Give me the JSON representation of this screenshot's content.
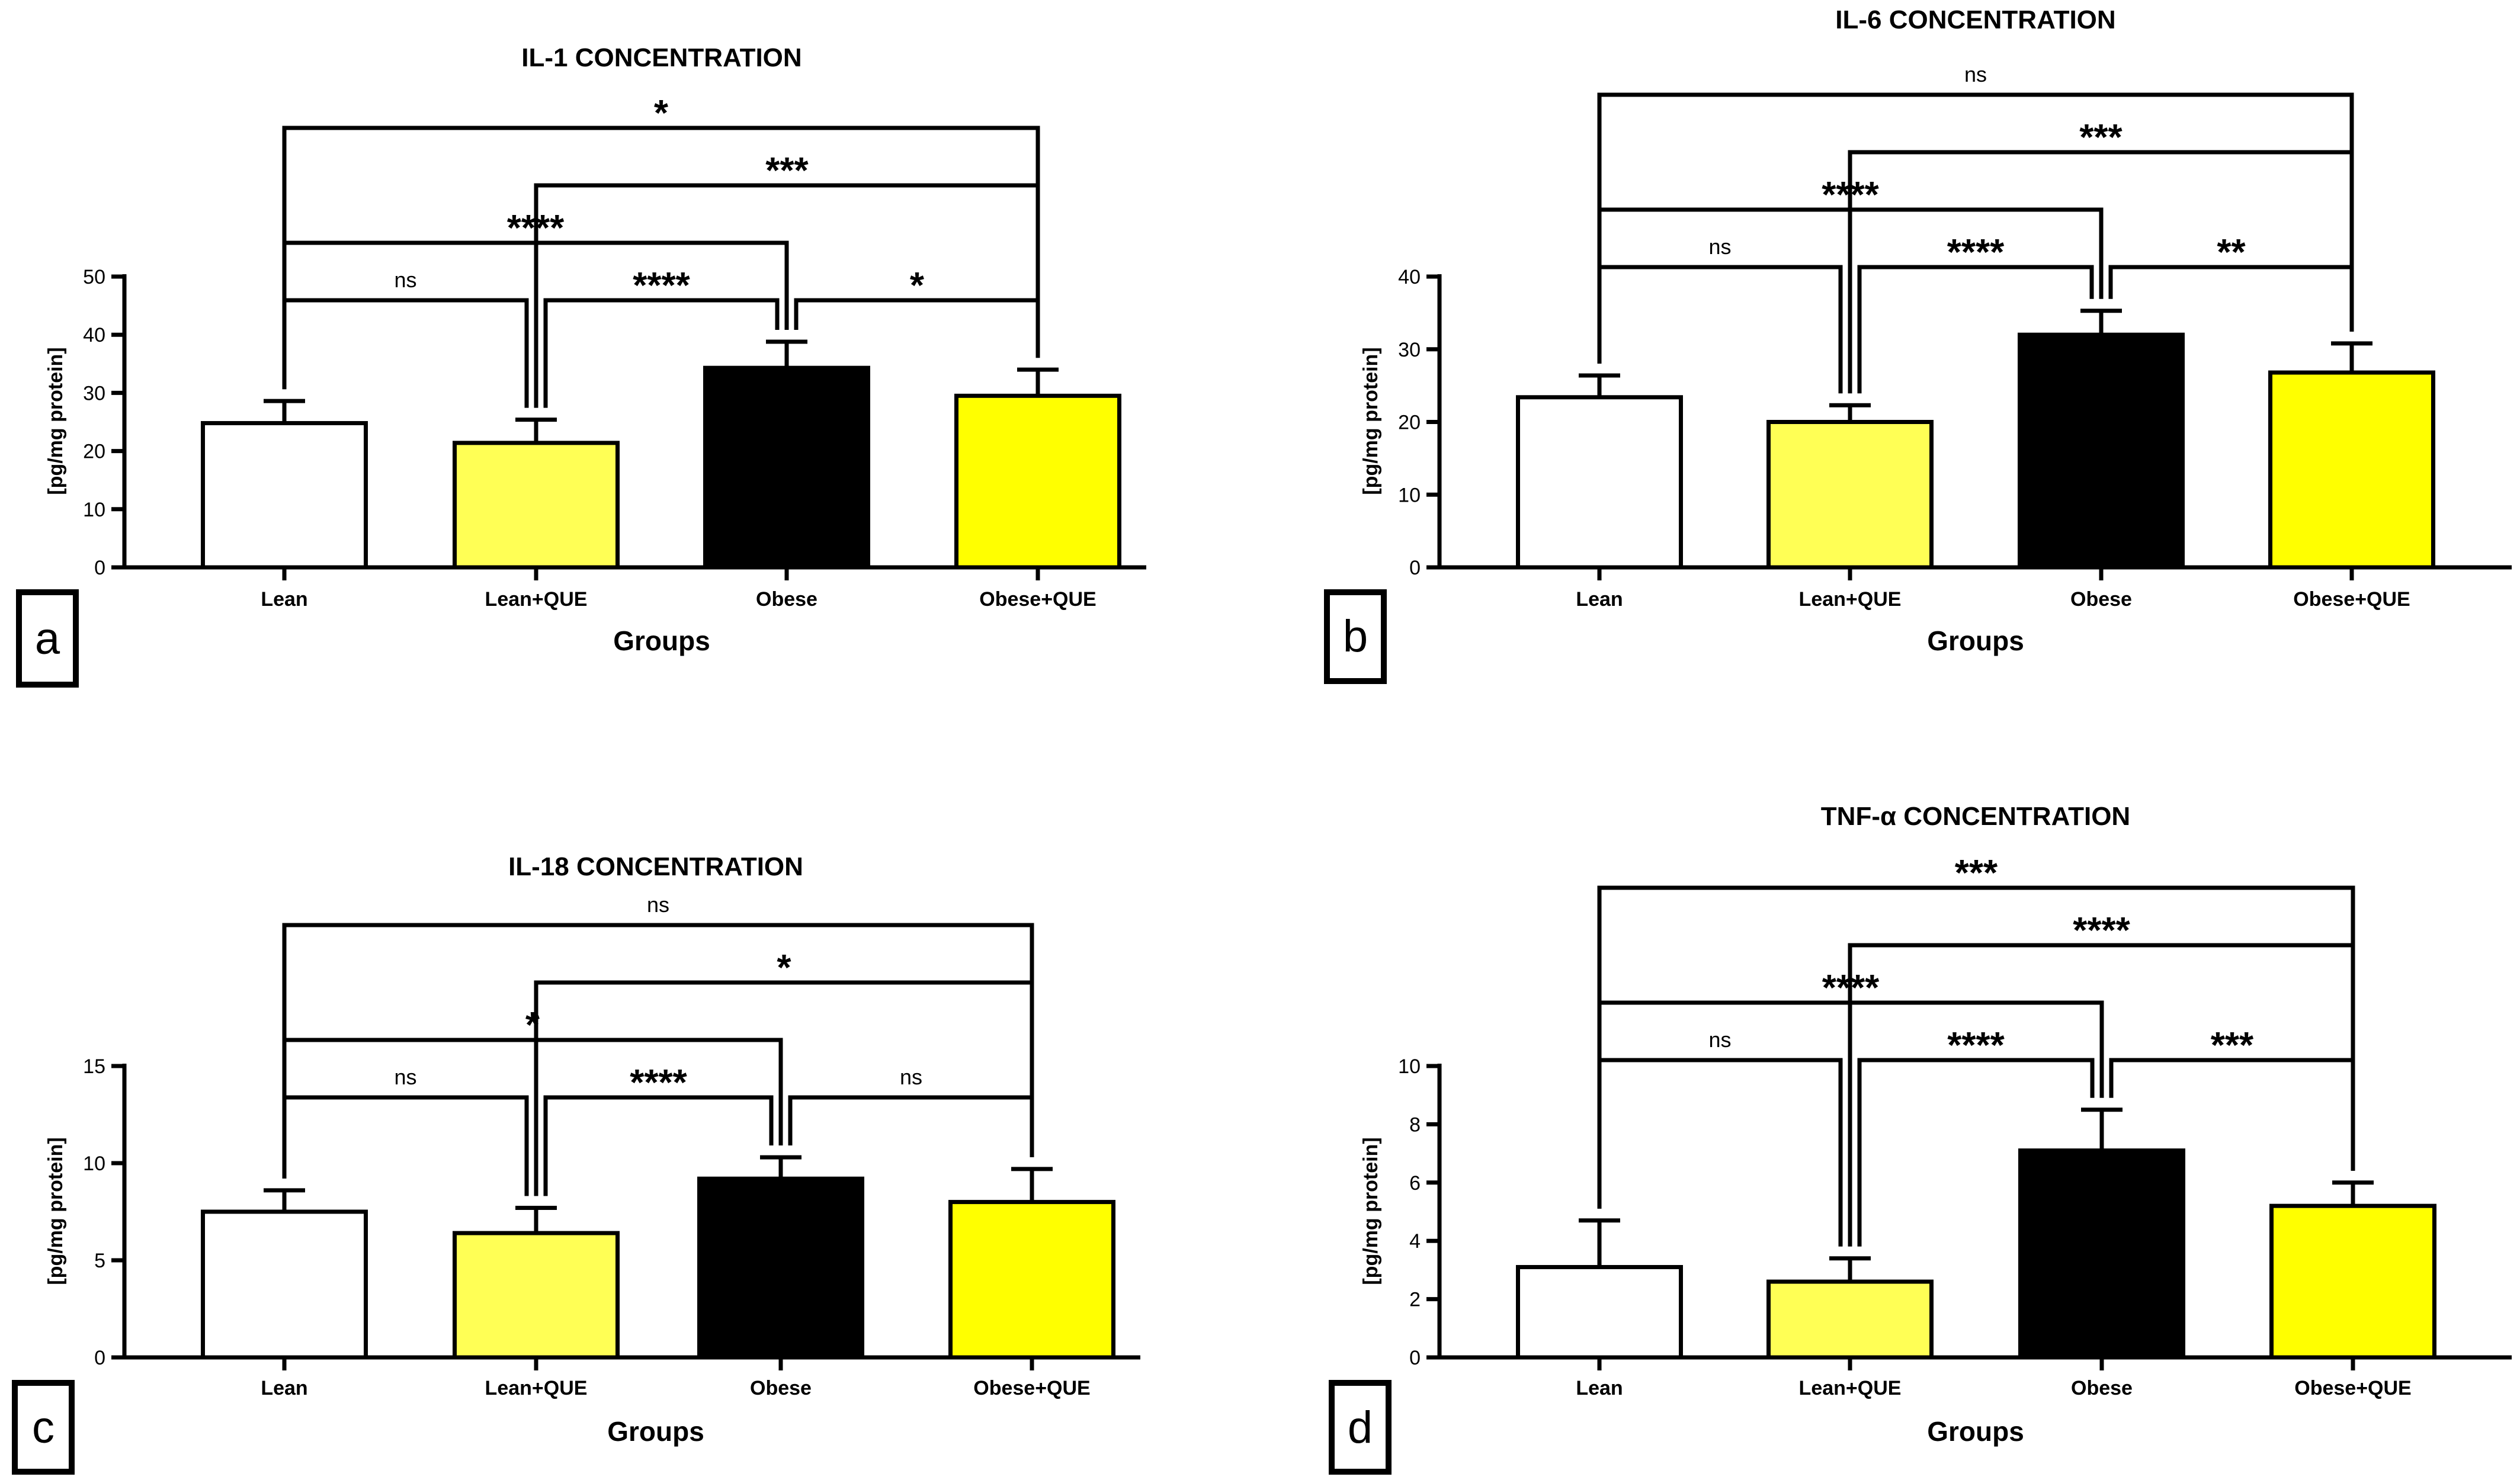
{
  "chart_data": [
    {
      "panel": "a",
      "type": "bar",
      "title": "IL-1 CONCENTRATION",
      "xlabel": "Groups",
      "ylabel": "[pg/mg protein]",
      "categories": [
        "Lean",
        "Lean+QUE",
        "Obese",
        "Obese+QUE"
      ],
      "values": [
        24.8,
        21.4,
        34.3,
        29.5
      ],
      "errors": [
        3.8,
        4.0,
        4.5,
        4.5
      ],
      "colors": [
        "#ffffff",
        "#ffff55",
        "#000000",
        "#ffff00"
      ],
      "ylim": [
        0,
        50
      ],
      "yticks": [
        "0",
        "10",
        "20",
        "30",
        "40",
        "50"
      ],
      "comparisons": [
        {
          "from": 0,
          "to": 1,
          "label": "ns"
        },
        {
          "from": 1,
          "to": 2,
          "label": "****"
        },
        {
          "from": 2,
          "to": 3,
          "label": "*"
        },
        {
          "from": 0,
          "to": 2,
          "label": "****"
        },
        {
          "from": 1,
          "to": 3,
          "label": "***"
        },
        {
          "from": 0,
          "to": 3,
          "label": "*"
        }
      ]
    },
    {
      "panel": "b",
      "type": "bar",
      "title": "IL-6 CONCENTRATION",
      "xlabel": "Groups",
      "ylabel": "[pg/mg protein]",
      "categories": [
        "Lean",
        "Lean+QUE",
        "Obese",
        "Obese+QUE"
      ],
      "values": [
        23.4,
        20.0,
        32.0,
        26.8
      ],
      "errors": [
        3.0,
        2.3,
        3.3,
        4.0
      ],
      "colors": [
        "#ffffff",
        "#ffff55",
        "#000000",
        "#ffff00"
      ],
      "ylim": [
        0,
        40
      ],
      "yticks": [
        "0",
        "10",
        "20",
        "30",
        "40"
      ],
      "comparisons": [
        {
          "from": 0,
          "to": 1,
          "label": "ns"
        },
        {
          "from": 1,
          "to": 2,
          "label": "****"
        },
        {
          "from": 2,
          "to": 3,
          "label": "**"
        },
        {
          "from": 0,
          "to": 2,
          "label": "****"
        },
        {
          "from": 1,
          "to": 3,
          "label": "***"
        },
        {
          "from": 0,
          "to": 3,
          "label": "ns"
        }
      ]
    },
    {
      "panel": "c",
      "type": "bar",
      "title": "IL-18 CONCENTRATION",
      "xlabel": "Groups",
      "ylabel": "[pg/mg protein]",
      "categories": [
        "Lean",
        "Lean+QUE",
        "Obese",
        "Obese+QUE"
      ],
      "values": [
        7.5,
        6.4,
        9.2,
        8.0
      ],
      "errors": [
        1.1,
        1.3,
        1.1,
        1.7
      ],
      "colors": [
        "#ffffff",
        "#ffff55",
        "#000000",
        "#ffff00"
      ],
      "ylim": [
        0,
        15
      ],
      "yticks": [
        "0",
        "5",
        "10",
        "15"
      ],
      "comparisons": [
        {
          "from": 0,
          "to": 1,
          "label": "ns"
        },
        {
          "from": 1,
          "to": 2,
          "label": "****"
        },
        {
          "from": 2,
          "to": 3,
          "label": "ns"
        },
        {
          "from": 0,
          "to": 2,
          "label": "*"
        },
        {
          "from": 1,
          "to": 3,
          "label": "*"
        },
        {
          "from": 0,
          "to": 3,
          "label": "ns"
        }
      ]
    },
    {
      "panel": "d",
      "type": "bar",
      "title": "TNF-α CONCENTRATION",
      "xlabel": "Groups",
      "ylabel": "[pg/mg protein]",
      "categories": [
        "Lean",
        "Lean+QUE",
        "Obese",
        "Obese+QUE"
      ],
      "values": [
        3.1,
        2.6,
        7.1,
        5.2
      ],
      "errors": [
        1.6,
        0.8,
        1.4,
        0.8
      ],
      "colors": [
        "#ffffff",
        "#ffff55",
        "#000000",
        "#ffff00"
      ],
      "ylim": [
        0,
        10
      ],
      "yticks": [
        "0",
        "2",
        "4",
        "6",
        "8",
        "10"
      ],
      "comparisons": [
        {
          "from": 0,
          "to": 1,
          "label": "ns"
        },
        {
          "from": 1,
          "to": 2,
          "label": "****"
        },
        {
          "from": 2,
          "to": 3,
          "label": "***"
        },
        {
          "from": 0,
          "to": 2,
          "label": "****"
        },
        {
          "from": 1,
          "to": 3,
          "label": "****"
        },
        {
          "from": 0,
          "to": 3,
          "label": "***"
        }
      ]
    }
  ]
}
